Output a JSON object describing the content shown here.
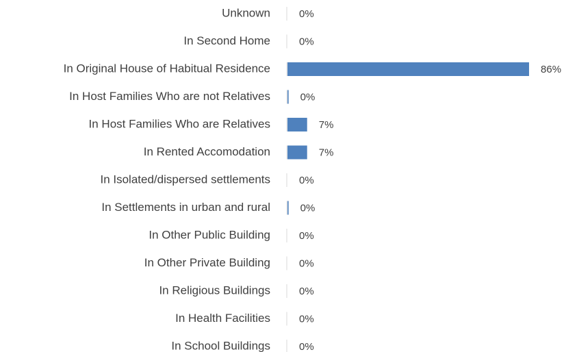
{
  "chart_data": {
    "type": "bar",
    "orientation": "horizontal",
    "categories": [
      "Unknown",
      "In Second Home",
      "In Original House of Habitual Residence",
      "In Host Families Who are not Relatives",
      "In Host Families Who are Relatives",
      "In Rented Accomodation",
      "In Isolated/dispersed settlements",
      "In Settlements in urban and rural",
      "In Other Public Building",
      "In Other Private Building",
      "In Religious Buildings",
      "In Health Facilities",
      "In School Buildings"
    ],
    "values": [
      0,
      0,
      86,
      0.4,
      7,
      7,
      0,
      0.4,
      0,
      0,
      0,
      0,
      0
    ],
    "value_labels": [
      "0%",
      "0%",
      "86%",
      "0%",
      "7%",
      "7%",
      "0%",
      "0%",
      "0%",
      "0%",
      "0%",
      "0%",
      "0%"
    ],
    "color": "#4f81bd"
  }
}
